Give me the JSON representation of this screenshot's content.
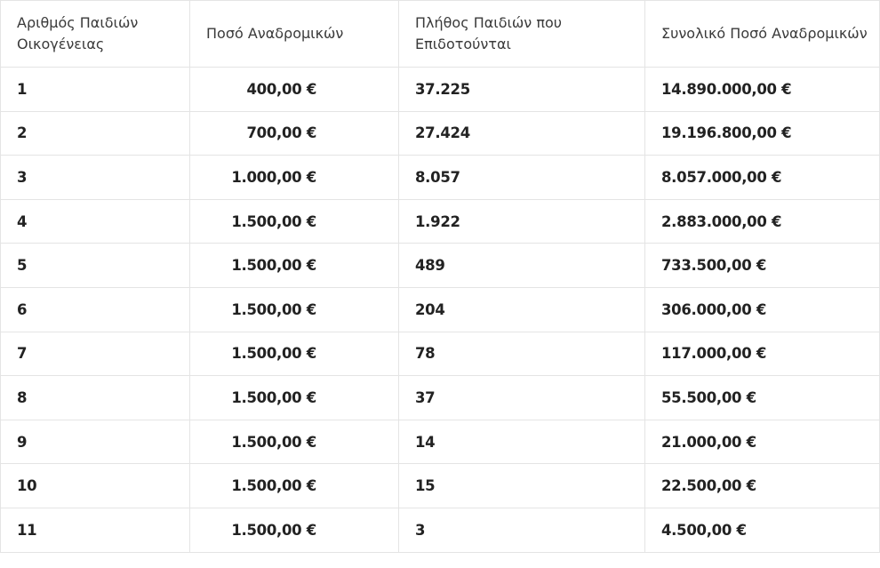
{
  "table": {
    "headers": [
      "Αριθμός Παιδιών Οικογένειας",
      "Ποσό Αναδρομικών",
      "Πλήθος Παιδιών που Επιδοτούνται",
      "Συνολικό Ποσό Αναδρομικών"
    ],
    "rows": [
      [
        "1",
        "400,00 €",
        "37.225",
        "14.890.000,00 €"
      ],
      [
        "2",
        "700,00 €",
        "27.424",
        "19.196.800,00 €"
      ],
      [
        "3",
        "1.000,00 €",
        "8.057",
        "8.057.000,00 €"
      ],
      [
        "4",
        "1.500,00 €",
        "1.922",
        "2.883.000,00 €"
      ],
      [
        "5",
        "1.500,00 €",
        "489",
        "733.500,00 €"
      ],
      [
        "6",
        "1.500,00 €",
        "204",
        "306.000,00 €"
      ],
      [
        "7",
        "1.500,00 €",
        "78",
        "117.000,00 €"
      ],
      [
        "8",
        "1.500,00 €",
        "37",
        "55.500,00 €"
      ],
      [
        "9",
        "1.500,00 €",
        "14",
        "21.000,00 €"
      ],
      [
        "10",
        "1.500,00 €",
        "15",
        "22.500,00 €"
      ],
      [
        "11",
        "1.500,00 €",
        "3",
        "4.500,00 €"
      ]
    ]
  }
}
